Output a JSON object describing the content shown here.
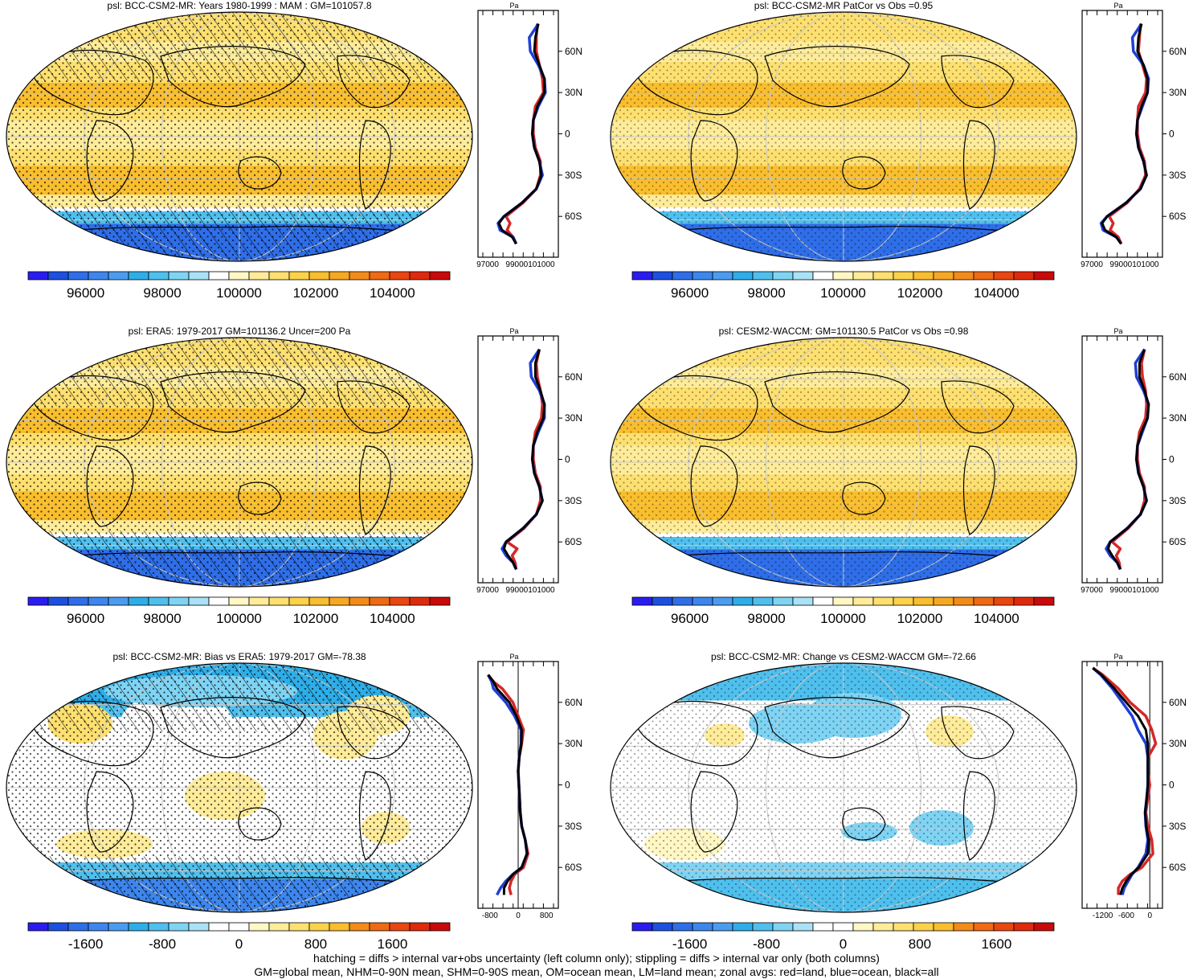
{
  "colors": {
    "land_line": "#d62728",
    "ocean_line": "#1f3fd6",
    "all_line": "#000000",
    "graticule": "#c8c8c8",
    "abs_scale": [
      "#2a1cf0",
      "#1d4fe0",
      "#2f6ee8",
      "#3d86ee",
      "#4b9cf0",
      "#2eaee8",
      "#4fc0ee",
      "#7fd4f4",
      "#a9e2f6",
      "#ffffff",
      "#fff7c4",
      "#feec9a",
      "#fde070",
      "#fcd24a",
      "#f9be2e",
      "#f7a823",
      "#f38b1a",
      "#ef6a14",
      "#e94610",
      "#e02a0c",
      "#c80a0a"
    ],
    "diff_scale": [
      "#2a1cf0",
      "#1d4fe0",
      "#2f6ee8",
      "#3d86ee",
      "#4b9cf0",
      "#2eaee8",
      "#4fc0ee",
      "#7fd4f4",
      "#a9e2f6",
      "#ffffff",
      "#ffffff",
      "#fff7c4",
      "#feec9a",
      "#fde070",
      "#fcd24a",
      "#f9be2e",
      "#f38b1a",
      "#ef6a14",
      "#e94610",
      "#e02a0c",
      "#c80a0a"
    ]
  },
  "chart_data": [
    {
      "type": "heatmap",
      "title": "psl: BCC-CSM2-MR: Years 1980-1999 : MAM : GM=101057.8",
      "colorbar": {
        "kind": "abs",
        "tick_labels": [
          "96000",
          "98000",
          "100000",
          "102000",
          "104000"
        ],
        "range": [
          94500,
          105500
        ]
      },
      "hatching": true,
      "stippling": true,
      "zonal_profile": {
        "axis_unit": "Pa",
        "x_tick_labels": [
          "97000",
          "99000101000"
        ],
        "xlim": [
          96000,
          103000
        ],
        "lat_tick_labels": [
          "60N",
          "30N",
          "0",
          "30S",
          "60S"
        ],
        "lat": [
          80,
          70,
          60,
          50,
          40,
          30,
          20,
          10,
          0,
          -10,
          -20,
          -30,
          -40,
          -50,
          -60,
          -65,
          -70,
          -75,
          -80
        ],
        "series": [
          {
            "name": "land",
            "values": [
              101400,
              101300,
              101300,
              101600,
              101900,
              102000,
              101200,
              101000,
              101000,
              101200,
              101700,
              101700,
              101300,
              100000,
              98300,
              98700,
              98400,
              99000,
              99300
            ]
          },
          {
            "name": "ocean",
            "values": [
              101500,
              100600,
              100700,
              101500,
              102100,
              102200,
              101500,
              101000,
              100900,
              101100,
              101600,
              101900,
              101300,
              99900,
              98100,
              97500,
              97700,
              99000,
              99300
            ]
          },
          {
            "name": "all",
            "values": [
              101500,
              101200,
              101100,
              101600,
              102100,
              102100,
              101400,
              101000,
              100900,
              101100,
              101600,
              101800,
              101300,
              99900,
              98100,
              97600,
              97900,
              98900,
              99300
            ]
          }
        ]
      }
    },
    {
      "type": "heatmap",
      "title": "psl: BCC-CSM2-MR PatCor vs Obs =0.95",
      "colorbar": {
        "kind": "abs",
        "tick_labels": [
          "96000",
          "98000",
          "100000",
          "102000",
          "104000"
        ],
        "range": [
          94500,
          105500
        ]
      },
      "hatching": false,
      "stippling": true,
      "zonal_profile": {
        "axis_unit": "Pa",
        "x_tick_labels": [
          "97000",
          "99000101000"
        ],
        "xlim": [
          96000,
          103000
        ],
        "lat_tick_labels": [
          "60N",
          "30N",
          "0",
          "30S",
          "60S"
        ],
        "lat": [
          80,
          70,
          60,
          50,
          40,
          30,
          20,
          10,
          0,
          -10,
          -20,
          -30,
          -40,
          -50,
          -60,
          -65,
          -70,
          -75,
          -80
        ],
        "series": [
          {
            "name": "land",
            "values": [
              101300,
              101200,
              101100,
              101500,
              101900,
              101800,
              101100,
              101000,
              101000,
              101200,
              101700,
              101800,
              101200,
              100000,
              98200,
              98600,
              98300,
              99100,
              99400
            ]
          },
          {
            "name": "ocean",
            "values": [
              101400,
              100500,
              100600,
              101600,
              102100,
              102000,
              101500,
              101000,
              100900,
              101100,
              101600,
              101900,
              101300,
              99900,
              98000,
              97400,
              97600,
              98900,
              99400
            ]
          },
          {
            "name": "all",
            "values": [
              101400,
              101100,
              101000,
              101600,
              102000,
              102000,
              101400,
              101000,
              100900,
              101100,
              101600,
              101900,
              101300,
              99900,
              98000,
              97500,
              97800,
              98900,
              99400
            ]
          }
        ]
      }
    },
    {
      "type": "heatmap",
      "title": "psl: ERA5: 1979-2017 GM=101136.2 Uncer=200 Pa",
      "colorbar": {
        "kind": "abs",
        "tick_labels": [
          "96000",
          "98000",
          "100000",
          "102000",
          "104000"
        ],
        "range": [
          94500,
          105500
        ]
      },
      "hatching": true,
      "stippling": true,
      "zonal_profile": {
        "axis_unit": "Pa",
        "x_tick_labels": [
          "97000",
          "99000101000"
        ],
        "xlim": [
          96000,
          103000
        ],
        "lat_tick_labels": [
          "60N",
          "30N",
          "0",
          "30S",
          "60S"
        ],
        "lat": [
          80,
          70,
          60,
          50,
          40,
          30,
          20,
          10,
          0,
          -10,
          -20,
          -30,
          -40,
          -50,
          -60,
          -65,
          -70,
          -75,
          -80
        ],
        "series": [
          {
            "name": "land",
            "values": [
              101600,
              101300,
              101400,
              101700,
              101900,
              101800,
              101200,
              101000,
              101000,
              101200,
              101700,
              101700,
              101300,
              100100,
              98400,
              99400,
              98900,
              99200,
              99300
            ]
          },
          {
            "name": "ocean",
            "values": [
              101600,
              100700,
              100800,
              101600,
              102100,
              102100,
              101500,
              101000,
              100900,
              101100,
              101600,
              101900,
              101300,
              100000,
              98300,
              97900,
              98300,
              99000,
              99300
            ]
          },
          {
            "name": "all",
            "values": [
              101600,
              101200,
              101200,
              101700,
              102100,
              102000,
              101400,
              101000,
              100900,
              101100,
              101600,
              101900,
              101300,
              100000,
              98300,
              98100,
              98500,
              99000,
              99300
            ]
          }
        ]
      }
    },
    {
      "type": "heatmap",
      "title": "psl: CESM2-WACCM: GM=101130.5 PatCor vs Obs =0.98",
      "colorbar": {
        "kind": "abs",
        "tick_labels": [
          "96000",
          "98000",
          "100000",
          "102000",
          "104000"
        ],
        "range": [
          94500,
          105500
        ]
      },
      "hatching": false,
      "stippling": true,
      "zonal_profile": {
        "axis_unit": "Pa",
        "x_tick_labels": [
          "97000",
          "99000101000"
        ],
        "xlim": [
          96000,
          103000
        ],
        "lat_tick_labels": [
          "60N",
          "30N",
          "0",
          "30S",
          "60S"
        ],
        "lat": [
          80,
          70,
          60,
          50,
          40,
          30,
          20,
          10,
          0,
          -10,
          -20,
          -30,
          -40,
          -50,
          -60,
          -65,
          -70,
          -75,
          -80
        ],
        "series": [
          {
            "name": "land",
            "values": [
              101700,
              101400,
              101500,
              101800,
              101900,
              101800,
              101200,
              101000,
              101000,
              101200,
              101700,
              101700,
              101300,
              100100,
              98500,
              99300,
              98900,
              99200,
              99300
            ]
          },
          {
            "name": "ocean",
            "values": [
              101700,
              100800,
              100900,
              101600,
              102100,
              102000,
              101500,
              101000,
              100900,
              101100,
              101600,
              101900,
              101300,
              100000,
              98300,
              97900,
              98300,
              99000,
              99300
            ]
          },
          {
            "name": "all",
            "values": [
              101700,
              101200,
              101200,
              101700,
              102100,
              102000,
              101400,
              101000,
              100900,
              101100,
              101600,
              101900,
              101300,
              100000,
              98300,
              98100,
              98500,
              99000,
              99300
            ]
          }
        ]
      }
    },
    {
      "type": "heatmap",
      "title": "psl: BCC-CSM2-MR: Bias vs ERA5: 1979-2017 GM=-78.38",
      "colorbar": {
        "kind": "diff",
        "tick_labels": [
          "-1600",
          "-800",
          "0",
          "800",
          "1600"
        ],
        "range": [
          -2200,
          2200
        ]
      },
      "hatching": true,
      "stippling": true,
      "zonal_profile": {
        "axis_unit": "Pa",
        "x_tick_labels": [
          "-800",
          "0",
          "800"
        ],
        "xlim": [
          -1000,
          1000
        ],
        "zero_line": true,
        "lat_tick_labels": [
          "60N",
          "30N",
          "0",
          "30S",
          "60S"
        ],
        "lat": [
          80,
          75,
          70,
          60,
          50,
          40,
          30,
          20,
          10,
          0,
          -10,
          -20,
          -30,
          -40,
          -50,
          -60,
          -65,
          -70,
          -75,
          -80
        ],
        "series": [
          {
            "name": "land",
            "values": [
              -850,
              -700,
              -450,
              -150,
              0,
              150,
              100,
              30,
              0,
              20,
              40,
              60,
              100,
              200,
              280,
              150,
              -100,
              -200,
              -250,
              -200
            ]
          },
          {
            "name": "ocean",
            "values": [
              -850,
              -750,
              -700,
              -350,
              -100,
              80,
              80,
              30,
              0,
              20,
              40,
              60,
              100,
              200,
              250,
              100,
              -150,
              -350,
              -500,
              -600
            ]
          },
          {
            "name": "all",
            "values": [
              -850,
              -700,
              -600,
              -250,
              -50,
              100,
              90,
              30,
              0,
              20,
              40,
              60,
              100,
              200,
              250,
              100,
              -150,
              -300,
              -400,
              -400
            ]
          }
        ]
      }
    },
    {
      "type": "heatmap",
      "title": "psl: BCC-CSM2-MR: Change vs CESM2-WACCM GM=-72.66",
      "colorbar": {
        "kind": "diff",
        "tick_labels": [
          "-1600",
          "-800",
          "0",
          "800",
          "1600"
        ],
        "range": [
          -2200,
          2200
        ]
      },
      "hatching": false,
      "stippling": true,
      "zonal_profile": {
        "axis_unit": "Pa",
        "x_tick_labels": [
          "-1200",
          "-600",
          "0"
        ],
        "xlim": [
          -1600,
          200
        ],
        "zero_line": true,
        "lat_tick_labels": [
          "60N",
          "30N",
          "0",
          "30S",
          "60S"
        ],
        "lat": [
          85,
          80,
          70,
          60,
          50,
          40,
          30,
          20,
          10,
          0,
          -10,
          -20,
          -30,
          -40,
          -50,
          -60,
          -65,
          -70,
          -75,
          -80
        ],
        "series": [
          {
            "name": "land",
            "values": [
              -1450,
              -1200,
              -800,
              -500,
              -100,
              50,
              150,
              -50,
              -50,
              0,
              -50,
              -100,
              -50,
              50,
              80,
              -200,
              -500,
              -700,
              -800,
              -800
            ]
          },
          {
            "name": "ocean",
            "values": [
              -1450,
              -1250,
              -950,
              -700,
              -450,
              -300,
              -100,
              -50,
              -50,
              -50,
              -80,
              -120,
              -100,
              -50,
              -100,
              -300,
              -450,
              -550,
              -650,
              -700
            ]
          },
          {
            "name": "all",
            "values": [
              -1450,
              -1230,
              -900,
              -600,
              -300,
              -100,
              -50,
              -50,
              -50,
              -50,
              -80,
              -120,
              -90,
              -30,
              -50,
              -280,
              -470,
              -600,
              -700,
              -750
            ]
          }
        ]
      }
    }
  ],
  "footer": {
    "line1": "hatching = diffs > internal var+obs uncertainty (left column only); stippling = diffs > internal var only (both columns)",
    "line2": "GM=global mean, NHM=0-90N mean, SHM=0-90S mean, OM=ocean mean, LM=land mean; zonal avgs: red=land, blue=ocean, black=all"
  }
}
